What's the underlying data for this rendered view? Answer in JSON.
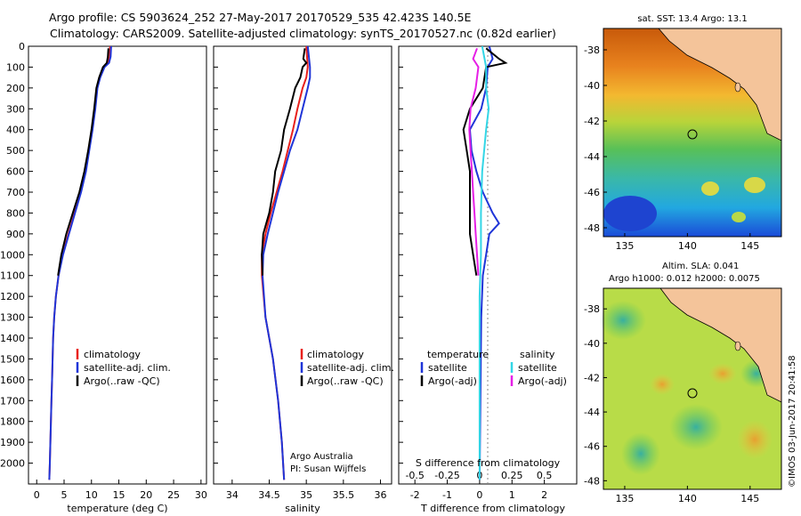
{
  "header": {
    "title_line1": "Argo profile: CS 5903624_252 27-May-2017 20170529_535 42.423S 140.5E",
    "title_line2": "Climatology: CARS2009. Satellite-adjusted climatology: synTS_20170527.nc (0.82d earlier)"
  },
  "colors": {
    "climatology": "#e8201c",
    "satellite": "#1f35d8",
    "argo": "#000000",
    "sat_salinity": "#33d6e6",
    "argo_salinity": "#e61fe6",
    "land": "#f4c49a"
  },
  "chart_data": [
    {
      "type": "line",
      "id": "temperature",
      "xlabel": "temperature (deg C)",
      "xlim": [
        -1.5,
        31
      ],
      "xticks": [
        "0",
        "5",
        "10",
        "15",
        "20",
        "25",
        "30"
      ],
      "ylim": [
        2100,
        0
      ],
      "yticks": [
        "0",
        "100",
        "200",
        "300",
        "400",
        "500",
        "600",
        "700",
        "800",
        "900",
        "1000",
        "1100",
        "1200",
        "1300",
        "1400",
        "1500",
        "1600",
        "1700",
        "1800",
        "1900",
        "2000"
      ],
      "legend": [
        "climatology",
        "satellite-adj. clim.",
        "Argo(..raw -QC)"
      ],
      "series": [
        {
          "name": "climatology",
          "points": [
            [
              13.4,
              0
            ],
            [
              13.3,
              50
            ],
            [
              13.0,
              80
            ],
            [
              12.2,
              100
            ],
            [
              11.5,
              150
            ],
            [
              11.0,
              200
            ],
            [
              10.6,
              300
            ],
            [
              10.1,
              400
            ],
            [
              9.5,
              500
            ],
            [
              8.9,
              600
            ],
            [
              8.0,
              700
            ],
            [
              6.9,
              800
            ],
            [
              5.8,
              900
            ],
            [
              4.7,
              1000
            ],
            [
              4.0,
              1100
            ],
            [
              3.5,
              1200
            ],
            [
              3.2,
              1300
            ],
            [
              3.0,
              1400
            ],
            [
              2.9,
              1500
            ],
            [
              2.8,
              1600
            ],
            [
              2.7,
              1700
            ],
            [
              2.6,
              1800
            ],
            [
              2.5,
              1900
            ],
            [
              2.4,
              2000
            ],
            [
              2.3,
              2080
            ]
          ]
        },
        {
          "name": "satellite-adj. clim.",
          "points": [
            [
              13.6,
              0
            ],
            [
              13.5,
              50
            ],
            [
              13.2,
              80
            ],
            [
              12.4,
              100
            ],
            [
              11.6,
              150
            ],
            [
              11.1,
              200
            ],
            [
              10.7,
              300
            ],
            [
              10.2,
              400
            ],
            [
              9.6,
              500
            ],
            [
              9.0,
              600
            ],
            [
              8.1,
              700
            ],
            [
              7.0,
              800
            ],
            [
              5.9,
              900
            ],
            [
              4.8,
              1000
            ],
            [
              4.0,
              1100
            ],
            [
              3.5,
              1200
            ],
            [
              3.2,
              1300
            ],
            [
              3.0,
              1400
            ],
            [
              2.9,
              1500
            ],
            [
              2.8,
              1600
            ],
            [
              2.7,
              1700
            ],
            [
              2.6,
              1800
            ],
            [
              2.5,
              1900
            ],
            [
              2.4,
              2000
            ],
            [
              2.3,
              2080
            ]
          ]
        },
        {
          "name": "Argo(..raw -QC)",
          "points": [
            [
              13.1,
              10
            ],
            [
              13.0,
              50
            ],
            [
              12.8,
              80
            ],
            [
              12.1,
              100
            ],
            [
              11.4,
              150
            ],
            [
              10.9,
              200
            ],
            [
              10.5,
              300
            ],
            [
              10.0,
              400
            ],
            [
              9.4,
              500
            ],
            [
              8.7,
              600
            ],
            [
              7.8,
              700
            ],
            [
              6.6,
              800
            ],
            [
              5.4,
              900
            ],
            [
              4.5,
              1000
            ],
            [
              3.9,
              1100
            ]
          ]
        }
      ]
    },
    {
      "type": "line",
      "id": "salinity",
      "xlabel": "salinity",
      "xlim": [
        33.75,
        36.15
      ],
      "xticks": [
        "34",
        "34.5",
        "35",
        "35.5",
        "36"
      ],
      "ylim": [
        2100,
        0
      ],
      "legend": [
        "climatology",
        "satellite-adj. clim.",
        "Argo(..raw -QC)"
      ],
      "series": [
        {
          "name": "climatology",
          "points": [
            [
              35.0,
              0
            ],
            [
              35.02,
              100
            ],
            [
              35.0,
              150
            ],
            [
              34.95,
              200
            ],
            [
              34.88,
              300
            ],
            [
              34.82,
              400
            ],
            [
              34.75,
              500
            ],
            [
              34.68,
              600
            ],
            [
              34.6,
              700
            ],
            [
              34.52,
              800
            ],
            [
              34.45,
              900
            ],
            [
              34.4,
              1000
            ],
            [
              34.4,
              1100
            ],
            [
              34.45,
              1300
            ],
            [
              34.55,
              1500
            ],
            [
              34.62,
              1700
            ],
            [
              34.67,
              1900
            ],
            [
              34.7,
              2080
            ]
          ]
        },
        {
          "name": "satellite-adj. clim.",
          "points": [
            [
              35.02,
              0
            ],
            [
              35.05,
              100
            ],
            [
              35.05,
              150
            ],
            [
              35.02,
              200
            ],
            [
              34.95,
              300
            ],
            [
              34.88,
              400
            ],
            [
              34.78,
              500
            ],
            [
              34.7,
              600
            ],
            [
              34.62,
              700
            ],
            [
              34.55,
              800
            ],
            [
              34.48,
              900
            ],
            [
              34.42,
              1000
            ],
            [
              34.41,
              1100
            ],
            [
              34.45,
              1300
            ],
            [
              34.55,
              1500
            ],
            [
              34.62,
              1700
            ],
            [
              34.67,
              1900
            ],
            [
              34.7,
              2080
            ]
          ]
        },
        {
          "name": "Argo(..raw -QC)",
          "points": [
            [
              34.98,
              10
            ],
            [
              34.96,
              60
            ],
            [
              35.0,
              80
            ],
            [
              34.95,
              100
            ],
            [
              34.92,
              150
            ],
            [
              34.85,
              200
            ],
            [
              34.78,
              300
            ],
            [
              34.7,
              400
            ],
            [
              34.66,
              500
            ],
            [
              34.58,
              600
            ],
            [
              34.55,
              700
            ],
            [
              34.5,
              800
            ],
            [
              34.42,
              900
            ],
            [
              34.4,
              1000
            ],
            [
              34.41,
              1100
            ]
          ]
        }
      ]
    },
    {
      "type": "line",
      "id": "difference",
      "xlabel_top": "S difference from climatology",
      "xticks_top": [
        "-0.5",
        "-0.25",
        "0",
        "0.25",
        "0.5"
      ],
      "xlabel": "T difference from climatology",
      "xlim": [
        -2.5,
        3.0
      ],
      "xticks": [
        "-2",
        "-1",
        "0",
        "1",
        "2"
      ],
      "ylim": [
        2100,
        0
      ],
      "legend": {
        "temperature": [
          "satellite",
          "Argo(-adj)"
        ],
        "salinity": [
          "satellite",
          "Argo(-adj)"
        ]
      },
      "series": [
        {
          "name": "T satellite",
          "points": [
            [
              0.3,
              0
            ],
            [
              0.4,
              60
            ],
            [
              0.25,
              100
            ],
            [
              0.2,
              200
            ],
            [
              0.05,
              300
            ],
            [
              -0.3,
              400
            ],
            [
              -0.25,
              500
            ],
            [
              -0.1,
              600
            ],
            [
              0.1,
              700
            ],
            [
              0.4,
              800
            ],
            [
              0.6,
              850
            ],
            [
              0.3,
              900
            ],
            [
              0.2,
              1000
            ],
            [
              0.1,
              1100
            ],
            [
              0.05,
              1300
            ],
            [
              0.0,
              2080
            ]
          ]
        },
        {
          "name": "T Argo(-adj)",
          "points": [
            [
              0.2,
              10
            ],
            [
              0.6,
              60
            ],
            [
              0.8,
              80
            ],
            [
              0.2,
              100
            ],
            [
              0.1,
              200
            ],
            [
              -0.3,
              300
            ],
            [
              -0.5,
              400
            ],
            [
              -0.4,
              500
            ],
            [
              -0.3,
              600
            ],
            [
              -0.3,
              700
            ],
            [
              -0.3,
              800
            ],
            [
              -0.3,
              900
            ],
            [
              -0.2,
              1000
            ],
            [
              -0.1,
              1100
            ]
          ]
        },
        {
          "name": "S satellite",
          "points": [
            [
              0.02,
              0
            ],
            [
              0.05,
              100
            ],
            [
              0.05,
              200
            ],
            [
              0.07,
              300
            ],
            [
              0.05,
              400
            ],
            [
              0.02,
              600
            ],
            [
              0.01,
              800
            ],
            [
              0.01,
              1000
            ],
            [
              0.0,
              1200
            ],
            [
              0.0,
              1500
            ],
            [
              0.0,
              2080
            ]
          ]
        },
        {
          "name": "S Argo(-adj)",
          "points": [
            [
              -0.02,
              10
            ],
            [
              -0.05,
              60
            ],
            [
              -0.01,
              100
            ],
            [
              -0.03,
              200
            ],
            [
              -0.07,
              300
            ],
            [
              -0.08,
              400
            ],
            [
              -0.07,
              500
            ],
            [
              -0.06,
              600
            ],
            [
              -0.05,
              700
            ],
            [
              -0.04,
              800
            ],
            [
              -0.03,
              900
            ],
            [
              -0.02,
              1000
            ],
            [
              -0.01,
              1100
            ]
          ]
        }
      ]
    },
    {
      "type": "heatmap",
      "id": "sst_map",
      "title": "sat. SST: 13.4 Argo: 13.1",
      "xticks": [
        "135",
        "140",
        "145"
      ],
      "yticks": [
        "-38",
        "-40",
        "-42",
        "-44",
        "-46",
        "-48"
      ],
      "lon_range": [
        133.3,
        147.5
      ],
      "lat_range": [
        -48.5,
        -36.8
      ],
      "argo_position": [
        140.5,
        -42.423
      ]
    },
    {
      "type": "heatmap",
      "id": "sla_map",
      "title": "Altim. SLA: 0.041",
      "subtitle": "Argo h1000: 0.012 h2000: 0.0075",
      "xticks": [
        "135",
        "140",
        "145"
      ],
      "yticks": [
        "-38",
        "-40",
        "-42",
        "-44",
        "-46",
        "-48"
      ],
      "lon_range": [
        133.3,
        147.5
      ],
      "lat_range": [
        -48.5,
        -36.8
      ],
      "argo_position": [
        140.5,
        -42.423
      ]
    }
  ],
  "side_text": {
    "imos_stamp": "©IMOS 03-Jun-2017 20:41:58",
    "credit_line1": "Argo Australia",
    "credit_line2": "PI: Susan Wijffels",
    "diff_legend_temperature": "temperature",
    "diff_legend_salinity": "salinity"
  }
}
